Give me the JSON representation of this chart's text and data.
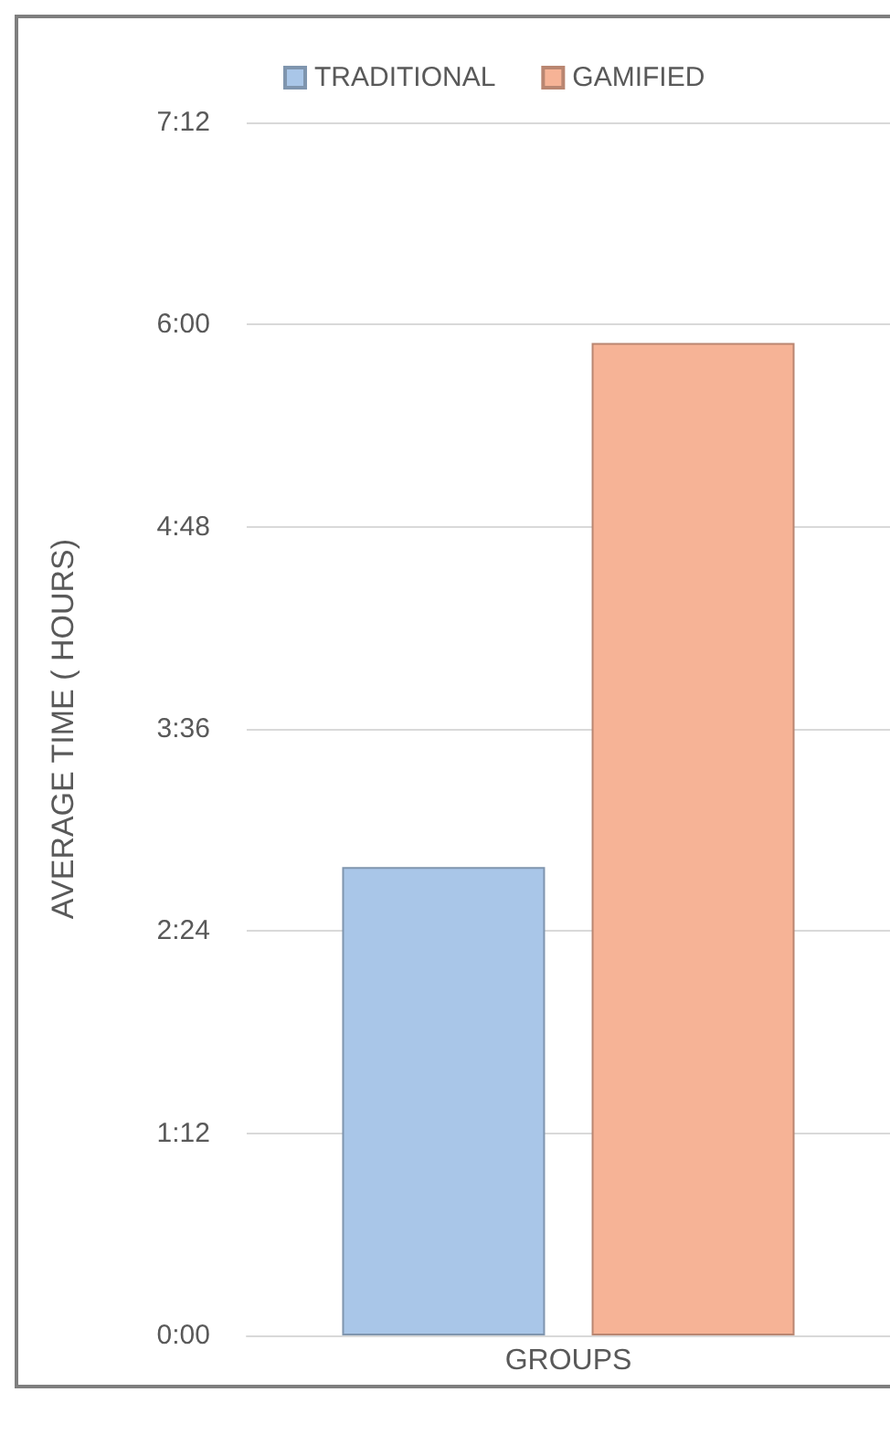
{
  "chart_data": {
    "type": "bar",
    "ylabel": "AVERAGE TIME ( HOURS)",
    "categories": [
      "GROUPS"
    ],
    "series": [
      {
        "name": "TRADITIONAL",
        "color": "#a9c6e8",
        "values": [
          2.78
        ]
      },
      {
        "name": "GAMIFIED",
        "color": "#f6b396",
        "values": [
          5.89
        ]
      }
    ],
    "ylim": [
      0,
      7.2
    ],
    "yticks": [
      {
        "value": 0,
        "label": "0:00"
      },
      {
        "value": 1.2,
        "label": "1:12"
      },
      {
        "value": 2.4,
        "label": "2:24"
      },
      {
        "value": 3.6,
        "label": "3:36"
      },
      {
        "value": 4.8,
        "label": "4:48"
      },
      {
        "value": 6,
        "label": "6:00"
      },
      {
        "value": 7.2,
        "label": "7:12"
      }
    ],
    "grid": "y",
    "legend": "top"
  }
}
